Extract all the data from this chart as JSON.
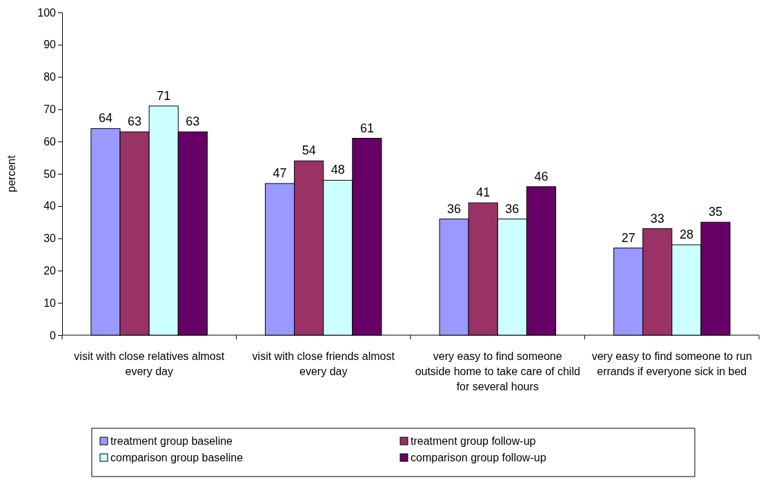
{
  "chart_data": {
    "type": "bar",
    "ylabel": "percent",
    "categories": [
      "visit with close relatives almost every day",
      "visit with close friends almost every day",
      "very easy to find someone outside home to take care of child for several hours",
      "very easy to find someone to run errands if everyone sick in bed"
    ],
    "series": [
      {
        "name": "treatment group baseline",
        "color": "#9999ff",
        "values": [
          64,
          47,
          36,
          27
        ]
      },
      {
        "name": "treatment group follow-up",
        "color": "#993366",
        "values": [
          63,
          54,
          41,
          33
        ]
      },
      {
        "name": "comparison group baseline",
        "color": "#ccffff",
        "values": [
          71,
          48,
          36,
          28
        ]
      },
      {
        "name": "comparison group follow-up",
        "color": "#660066",
        "values": [
          63,
          61,
          46,
          35
        ]
      }
    ],
    "ylim": [
      0,
      100
    ],
    "yticks": [
      0,
      10,
      20,
      30,
      40,
      50,
      60,
      70,
      80,
      90,
      100
    ],
    "data_labels": true,
    "legend": "bottom",
    "grid": false
  }
}
